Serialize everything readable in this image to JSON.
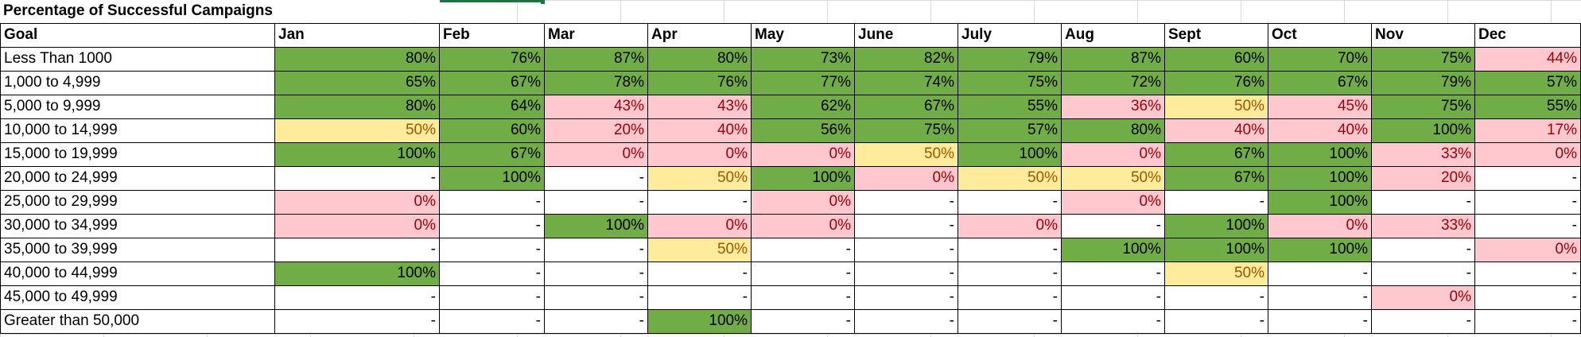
{
  "sheet": {
    "title": "Percentage of Successful Campaigns",
    "corner_header": "Goal",
    "months": [
      "Jan",
      "Feb",
      "Mar",
      "Apr",
      "May",
      "June",
      "July",
      "Aug",
      "Sept",
      "Oct",
      "Nov",
      "Dec"
    ],
    "colors": {
      "green_fill": "#70ad47",
      "red_fill": "#ffc7ce",
      "red_text": "#9c0006",
      "yellow_fill": "#ffeb9c",
      "yellow_text": "#9c5700",
      "selection": "#217346"
    },
    "rows": [
      {
        "label": "Less Than 1000",
        "values": [
          "80%",
          "76%",
          "87%",
          "80%",
          "73%",
          "82%",
          "79%",
          "87%",
          "60%",
          "70%",
          "75%",
          "44%"
        ],
        "styles": [
          "green",
          "green",
          "green",
          "green",
          "green",
          "green",
          "green",
          "green",
          "green",
          "green",
          "green",
          "red"
        ]
      },
      {
        "label": "1,000 to 4,999",
        "values": [
          "65%",
          "67%",
          "78%",
          "76%",
          "77%",
          "74%",
          "75%",
          "72%",
          "76%",
          "67%",
          "79%",
          "57%"
        ],
        "styles": [
          "green",
          "green",
          "green",
          "green",
          "green",
          "green",
          "green",
          "green",
          "green",
          "green",
          "green",
          "green"
        ]
      },
      {
        "label": "5,000 to 9,999",
        "values": [
          "80%",
          "64%",
          "43%",
          "43%",
          "62%",
          "67%",
          "55%",
          "36%",
          "50%",
          "45%",
          "75%",
          "55%"
        ],
        "styles": [
          "green",
          "green",
          "red",
          "red",
          "green",
          "green",
          "green",
          "red",
          "yellow",
          "red",
          "green",
          "green"
        ]
      },
      {
        "label": "10,000 to 14,999",
        "values": [
          "50%",
          "60%",
          "20%",
          "40%",
          "56%",
          "75%",
          "57%",
          "80%",
          "40%",
          "40%",
          "100%",
          "17%"
        ],
        "styles": [
          "yellow",
          "green",
          "red",
          "red",
          "green",
          "green",
          "green",
          "green",
          "red",
          "red",
          "green",
          "red"
        ]
      },
      {
        "label": "15,000 to 19,999",
        "values": [
          "100%",
          "67%",
          "0%",
          "0%",
          "0%",
          "50%",
          "100%",
          "0%",
          "67%",
          "100%",
          "33%",
          "0%"
        ],
        "styles": [
          "green",
          "green",
          "red",
          "red",
          "red",
          "yellow",
          "green",
          "red",
          "green",
          "green",
          "red",
          "red"
        ]
      },
      {
        "label": "20,000 to 24,999",
        "values": [
          "-",
          "100%",
          "-",
          "50%",
          "100%",
          "0%",
          "50%",
          "50%",
          "67%",
          "100%",
          "20%",
          "-"
        ],
        "styles": [
          "blank",
          "green",
          "blank",
          "yellow",
          "green",
          "red",
          "yellow",
          "yellow",
          "green",
          "green",
          "red",
          "blank"
        ]
      },
      {
        "label": "25,000 to 29,999",
        "values": [
          "0%",
          "-",
          "-",
          "-",
          "0%",
          "-",
          "-",
          "0%",
          "-",
          "100%",
          "-",
          "-"
        ],
        "styles": [
          "red",
          "blank",
          "blank",
          "blank",
          "red",
          "blank",
          "blank",
          "red",
          "blank",
          "green",
          "blank",
          "blank"
        ]
      },
      {
        "label": "30,000 to 34,999",
        "values": [
          "0%",
          "-",
          "100%",
          "0%",
          "0%",
          "-",
          "0%",
          "-",
          "100%",
          "0%",
          "33%",
          "-"
        ],
        "styles": [
          "red",
          "blank",
          "green",
          "red",
          "red",
          "blank",
          "red",
          "blank",
          "green",
          "red",
          "red",
          "blank"
        ]
      },
      {
        "label": "35,000 to 39,999",
        "values": [
          "-",
          "-",
          "-",
          "50%",
          "-",
          "-",
          "-",
          "100%",
          "100%",
          "100%",
          "-",
          "0%"
        ],
        "styles": [
          "blank",
          "blank",
          "blank",
          "yellow",
          "blank",
          "blank",
          "blank",
          "green",
          "green",
          "green",
          "blank",
          "red"
        ]
      },
      {
        "label": "40,000 to 44,999",
        "values": [
          "100%",
          "-",
          "-",
          "-",
          "-",
          "-",
          "-",
          "-",
          "50%",
          "-",
          "-",
          "-"
        ],
        "styles": [
          "green",
          "blank",
          "blank",
          "blank",
          "blank",
          "blank",
          "blank",
          "blank",
          "yellow",
          "blank",
          "blank",
          "blank"
        ]
      },
      {
        "label": "45,000 to 49,999",
        "values": [
          "-",
          "-",
          "-",
          "-",
          "-",
          "-",
          "-",
          "-",
          "-",
          "-",
          "0%",
          "-"
        ],
        "styles": [
          "blank",
          "blank",
          "blank",
          "blank",
          "blank",
          "blank",
          "blank",
          "blank",
          "blank",
          "blank",
          "red",
          "blank"
        ]
      },
      {
        "label": "Greater than 50,000",
        "values": [
          "-",
          "-",
          "-",
          "100%",
          "-",
          "-",
          "-",
          "-",
          "-",
          "-",
          "-",
          "-"
        ],
        "styles": [
          "blank",
          "blank",
          "blank",
          "green",
          "blank",
          "blank",
          "blank",
          "blank",
          "blank",
          "blank",
          "blank",
          "blank"
        ]
      }
    ]
  }
}
